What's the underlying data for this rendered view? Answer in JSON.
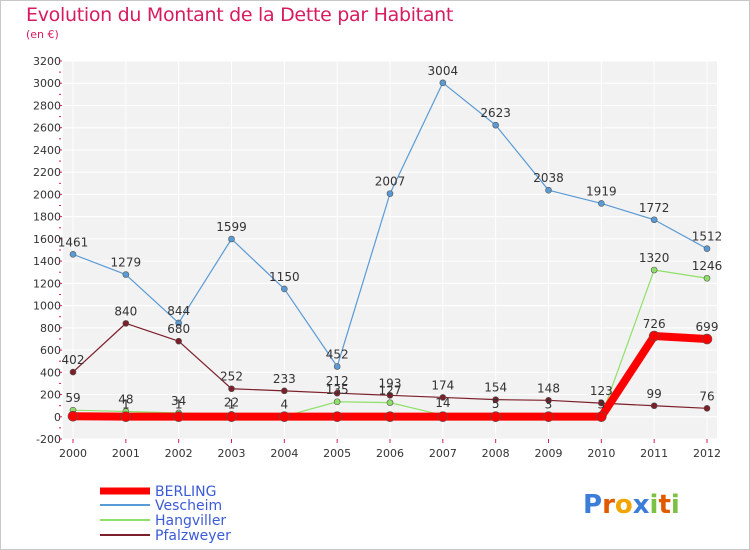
{
  "title": "Evolution du Montant de la Dette par Habitant",
  "subtitle": "(en €)",
  "logo": "Proxiti",
  "chart_data": {
    "type": "line",
    "x": [
      "2000",
      "2001",
      "2002",
      "2003",
      "2004",
      "2005",
      "2006",
      "2007",
      "2008",
      "2009",
      "2010",
      "2011",
      "2012"
    ],
    "ylim": [
      -200,
      3200
    ],
    "yticks": [
      -200,
      0,
      200,
      400,
      600,
      800,
      1000,
      1200,
      1400,
      1600,
      1800,
      2000,
      2200,
      2400,
      2600,
      2800,
      3000,
      3200
    ],
    "grid": true,
    "legend_position": "bottom-left",
    "series": [
      {
        "name": "Vescheim",
        "color": "#5b9bd5",
        "values": [
          1461,
          1279,
          844,
          1599,
          1150,
          452,
          2007,
          3004,
          2623,
          2038,
          1919,
          1772,
          1512
        ],
        "labels": [
          "1461",
          "1279",
          "844",
          "1599",
          "1150",
          "452",
          "2007",
          "3004",
          "2623",
          "2038",
          "1919",
          "1772",
          "1512"
        ]
      },
      {
        "name": "Pfalzweyer",
        "color": "#7b1f2a",
        "values": [
          402,
          840,
          680,
          252,
          233,
          212,
          193,
          174,
          154,
          148,
          123,
          99,
          76
        ],
        "labels": [
          "402",
          "840",
          "680",
          "252",
          "233",
          "212",
          "193",
          "174",
          "154",
          "148",
          "123",
          "99",
          "76"
        ]
      },
      {
        "name": "Hangviller",
        "color": "#8fe06a",
        "values": [
          59,
          48,
          34,
          22,
          4,
          135,
          127,
          14,
          5,
          3,
          3,
          1320,
          1246
        ],
        "labels": [
          "59",
          "48",
          "34",
          "22",
          "4",
          "135",
          "127",
          "14",
          "5",
          "3",
          "3",
          "1320",
          "1246"
        ]
      },
      {
        "name": "BERLING",
        "color": "#ff0000",
        "values": [
          5,
          1,
          1,
          1,
          1,
          1,
          1,
          1,
          1,
          1,
          1,
          726,
          699
        ],
        "labels": [
          "",
          "1",
          "1",
          "1",
          "",
          "",
          "",
          "",
          "",
          "",
          "",
          "726",
          "699"
        ]
      }
    ],
    "legend": [
      "BERLING",
      "Vescheim",
      "Hangviller",
      "Pfalzweyer"
    ]
  }
}
